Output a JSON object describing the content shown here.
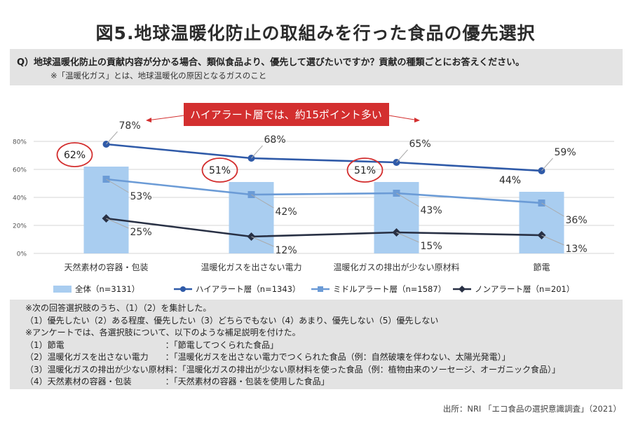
{
  "title": "図5.地球温暖化防止の取組みを行った食品の優先選択",
  "question": {
    "line": "Q）地球温暖化防止の貢献内容が分かる場合、類似食品より、優先して選びたいですか？貢献の種類ごとにお答えください。",
    "note": "※「温暖化ガス」とは、地球温暖化の原因となるガスのこと"
  },
  "callout": "ハイアラート層では、約15ポイント多い",
  "colors": {
    "bar": "#a9cdf0",
    "high": "#2f5aa8",
    "middle": "#6b9bd6",
    "non": "#283044",
    "callout_bg": "#d32f2f",
    "circle": "#d32f2f"
  },
  "chart_data": {
    "type": "bar",
    "categories": [
      "天然素材の容器・包装",
      "温暖化ガスを出さない電力",
      "温暖化ガスの排出が少ない原材料",
      "節電"
    ],
    "ylim": [
      0,
      80
    ],
    "yticks": [
      "0%",
      "20%",
      "40%",
      "60%",
      "80%"
    ],
    "series": [
      {
        "name": "全体（n=3131）",
        "kind": "bar",
        "values": [
          62,
          51,
          51,
          44
        ],
        "labels": [
          "62%",
          "51%",
          "51%",
          "44%"
        ]
      },
      {
        "name": "ハイアラート層（n=1343）",
        "kind": "line",
        "values": [
          78,
          68,
          65,
          59
        ],
        "labels": [
          "78%",
          "68%",
          "65%",
          "59%"
        ]
      },
      {
        "name": "ミドルアラート層（n=1587）",
        "kind": "line",
        "values": [
          53,
          42,
          43,
          36
        ],
        "labels": [
          "53%",
          "42%",
          "43%",
          "36%"
        ]
      },
      {
        "name": "ノンアラート層（n=201）",
        "kind": "line",
        "values": [
          25,
          12,
          15,
          13
        ],
        "labels": [
          "25%",
          "12%",
          "15%",
          "13%"
        ]
      }
    ]
  },
  "notes": [
    "※次の回答選択肢のうち、（1）（2）を集計した。",
    "（1）優先したい（2）ある程度、優先したい（3）どちらでもない（4）あまり、優先しない（5）優先しない",
    "※アンケートでは、各選択肢について、以下のような補足説明を付けた。",
    "（1）節電　　　　　　　　　　　　：「節電してつくられた食品」",
    "（2）温暖化ガスを出さない電力　　：「温暖化ガスを出さない電力でつくられた食品（例：自然破壊を伴わない、太陽光発電）」",
    "（3）温暖化ガスの排出が少ない原材料：「温暖化ガスの排出が少ない原材料を使った食品（例：植物由来のソーセージ、オーガニック食品）」",
    "（4）天然素材の容器・包装　　　　：「天然素材の容器・包装を使用した食品」"
  ],
  "source": "出所：NRI 「エコ食品の選択意識調査」（2021）"
}
